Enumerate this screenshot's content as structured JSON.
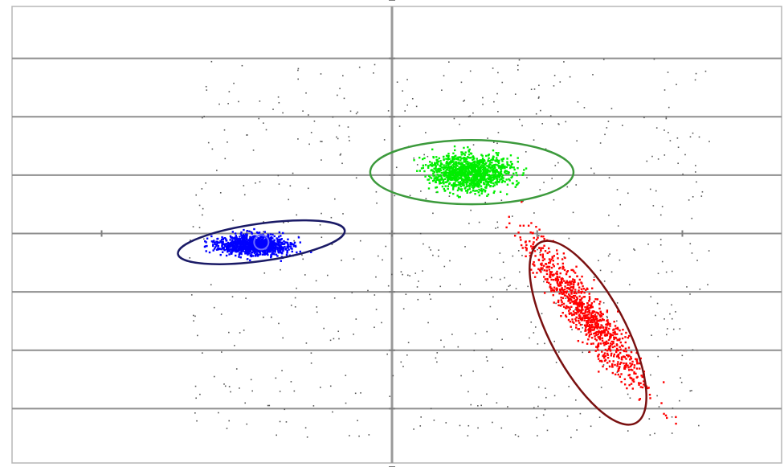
{
  "chart_data": {
    "type": "scatter",
    "title": "",
    "xlabel": "",
    "ylabel": "",
    "xlim": [
      -2.7,
      2.7
    ],
    "ylim": [
      -4,
      4
    ],
    "grid": true,
    "horizontal_gridlines_y": [
      -3,
      -2,
      -1,
      0,
      1,
      2,
      3
    ],
    "vertical_axis_x": 0,
    "legend": "none",
    "series": [
      {
        "color": "#0000ff",
        "points_approx": 6500,
        "center": [
          -0.95,
          -0.2
        ],
        "spread": [
          0.32,
          0.22
        ],
        "ellipse": {
          "center": [
            -0.9,
            -0.15
          ],
          "rx": 0.58,
          "ry": 0.32,
          "rotation": -8
        },
        "inner_marker": [
          -0.9,
          -0.15
        ]
      },
      {
        "color": "#00ee00",
        "points_approx": 7000,
        "center": [
          0.55,
          1.05
        ],
        "spread": [
          0.36,
          0.4
        ],
        "ellipse": {
          "center": [
            0.55,
            1.05
          ],
          "rx": 0.7,
          "ry": 0.55,
          "rotation": 0
        }
      },
      {
        "color": "#ff0000",
        "points_approx": 5500,
        "center": [
          1.35,
          -1.4
        ],
        "spread": [
          0.16,
          0.95
        ],
        "ellipse": {
          "center": [
            1.35,
            -1.7
          ],
          "rx": 0.26,
          "ry": 1.75,
          "rotation": -28
        }
      }
    ],
    "noise_color": "#555555"
  }
}
